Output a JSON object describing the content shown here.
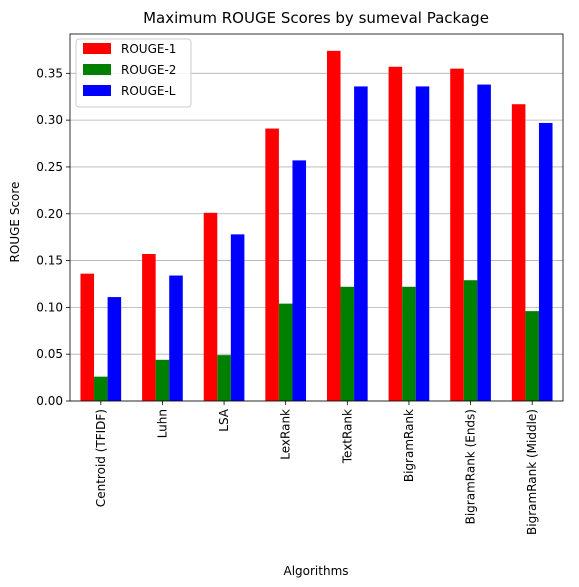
{
  "chart_data": {
    "type": "bar",
    "title": "Maximum ROUGE Scores by sumeval Package",
    "xlabel": "Algorithms",
    "ylabel": "ROUGE Score",
    "categories": [
      "Centroid (TFIDF)",
      "Luhn",
      "LSA",
      "LexRank",
      "TextRank",
      "BigramRank",
      "BigramRank (Ends)",
      "BigramRank (Middle)"
    ],
    "series": [
      {
        "name": "ROUGE-1",
        "color": "#ff0000",
        "values": [
          0.136,
          0.157,
          0.201,
          0.291,
          0.374,
          0.357,
          0.355,
          0.317
        ]
      },
      {
        "name": "ROUGE-2",
        "color": "#008000",
        "values": [
          0.026,
          0.044,
          0.049,
          0.104,
          0.122,
          0.122,
          0.129,
          0.096
        ]
      },
      {
        "name": "ROUGE-L",
        "color": "#0000ff",
        "values": [
          0.111,
          0.134,
          0.178,
          0.257,
          0.336,
          0.336,
          0.338,
          0.297
        ]
      }
    ],
    "ylim": [
      0,
      0.392
    ],
    "yticks": [
      "0.00",
      "0.05",
      "0.10",
      "0.15",
      "0.20",
      "0.25",
      "0.30",
      "0.35"
    ],
    "grid": "horizontal",
    "legend_position": "top-left"
  }
}
